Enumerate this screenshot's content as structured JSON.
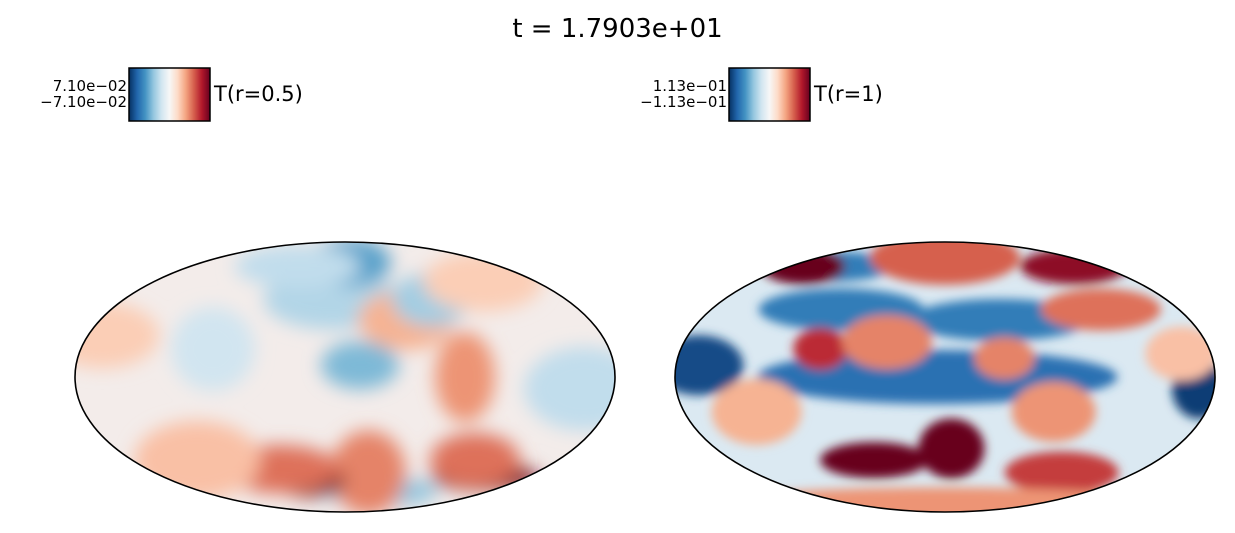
{
  "figure": {
    "title": "t = 1.7903e+01"
  },
  "chart_data": [
    {
      "type": "heatmap",
      "projection": "mollweide",
      "colormap": "RdBu_r",
      "colorbar": {
        "label": "T(r=0.5)",
        "max_label": "7.10e−02",
        "min_label": "−7.10e−02",
        "vmin": -0.071,
        "vmax": 0.071,
        "placement": "top-left"
      },
      "features": [
        {
          "lon": 140,
          "lat": -48,
          "w": 36,
          "h": 9,
          "value": 0.95
        },
        {
          "lon": 110,
          "lat": -38,
          "w": 30,
          "h": 18,
          "value": 0.55
        },
        {
          "lon": 45,
          "lat": -58,
          "w": 38,
          "h": 10,
          "value": -0.4
        },
        {
          "lon": 22,
          "lat": -45,
          "w": 25,
          "h": 28,
          "value": 0.5
        },
        {
          "lon": -38,
          "lat": -50,
          "w": 24,
          "h": 11,
          "value": 1.0
        },
        {
          "lon": -60,
          "lat": -43,
          "w": 40,
          "h": 16,
          "value": 0.55
        },
        {
          "lon": -125,
          "lat": -38,
          "w": 42,
          "h": 26,
          "value": 0.3
        },
        {
          "lon": -170,
          "lat": 18,
          "w": 38,
          "h": 22,
          "value": 0.25
        },
        {
          "lon": -10,
          "lat": 35,
          "w": 46,
          "h": 20,
          "value": -0.3
        },
        {
          "lon": 5,
          "lat": 58,
          "w": 28,
          "h": 16,
          "value": -0.55
        },
        {
          "lon": 10,
          "lat": 5,
          "w": 26,
          "h": 16,
          "value": -0.45
        },
        {
          "lon": 45,
          "lat": 25,
          "w": 32,
          "h": 20,
          "value": 0.35
        },
        {
          "lon": 70,
          "lat": 35,
          "w": 26,
          "h": 18,
          "value": -0.35
        },
        {
          "lon": 130,
          "lat": 45,
          "w": 40,
          "h": 20,
          "value": 0.25
        },
        {
          "lon": 160,
          "lat": -5,
          "w": 40,
          "h": 28,
          "value": -0.25
        },
        {
          "lon": -90,
          "lat": 12,
          "w": 28,
          "h": 28,
          "value": -0.2
        },
        {
          "lon": -55,
          "lat": 55,
          "w": 42,
          "h": 14,
          "value": -0.25
        },
        {
          "lon": 80,
          "lat": 0,
          "w": 20,
          "h": 30,
          "value": 0.45
        }
      ]
    },
    {
      "type": "heatmap",
      "projection": "mollweide",
      "colormap": "RdBu_r",
      "colorbar": {
        "label": "T(r=1)",
        "max_label": "1.13e−01",
        "min_label": "−1.13e−01",
        "vmin": -0.113,
        "vmax": 0.113,
        "placement": "top-left"
      },
      "features": [
        {
          "lon": -5,
          "lat": 0,
          "w": 120,
          "h": 18,
          "value": -0.75
        },
        {
          "lon": 40,
          "lat": 25,
          "w": 60,
          "h": 14,
          "value": -0.7
        },
        {
          "lon": -80,
          "lat": 30,
          "w": 55,
          "h": 14,
          "value": -0.7
        },
        {
          "lon": -165,
          "lat": 5,
          "w": 30,
          "h": 20,
          "value": -0.9
        },
        {
          "lon": 170,
          "lat": -5,
          "w": 18,
          "h": 20,
          "value": -0.95
        },
        {
          "lon": -130,
          "lat": 55,
          "w": 40,
          "h": 10,
          "value": -0.7
        },
        {
          "lon": 5,
          "lat": -32,
          "w": 22,
          "h": 20,
          "value": 1.0
        },
        {
          "lon": -60,
          "lat": -38,
          "w": 36,
          "h": 12,
          "value": 1.0
        },
        {
          "lon": -85,
          "lat": 12,
          "w": 18,
          "h": 14,
          "value": 0.75
        },
        {
          "lon": 0,
          "lat": 62,
          "w": 50,
          "h": 18,
          "value": 0.6
        },
        {
          "lon": -165,
          "lat": 55,
          "w": 28,
          "h": 12,
          "value": 1.0
        },
        {
          "lon": 150,
          "lat": 55,
          "w": 36,
          "h": 12,
          "value": 0.9
        },
        {
          "lon": 120,
          "lat": 30,
          "w": 40,
          "h": 14,
          "value": 0.55
        },
        {
          "lon": 110,
          "lat": -45,
          "w": 38,
          "h": 14,
          "value": 0.7
        },
        {
          "lon": 75,
          "lat": -15,
          "w": 28,
          "h": 20,
          "value": 0.45
        },
        {
          "lon": -40,
          "lat": 15,
          "w": 30,
          "h": 18,
          "value": 0.5
        },
        {
          "lon": 40,
          "lat": 8,
          "w": 20,
          "h": 14,
          "value": 0.5
        },
        {
          "lon": -130,
          "lat": -15,
          "w": 30,
          "h": 22,
          "value": 0.35
        },
        {
          "lon": 0,
          "lat": -72,
          "w": 160,
          "h": 12,
          "value": 0.45
        },
        {
          "lon": 160,
          "lat": 10,
          "w": 24,
          "h": 18,
          "value": 0.3
        }
      ]
    }
  ]
}
